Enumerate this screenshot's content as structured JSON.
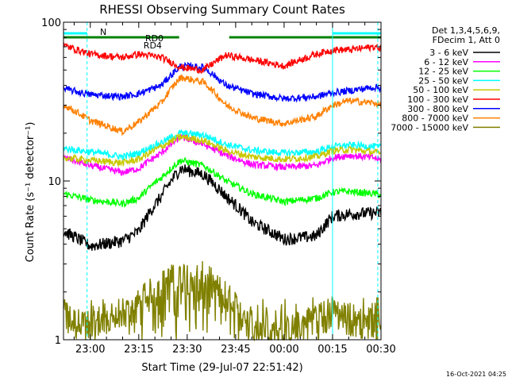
{
  "chart_data": {
    "type": "line",
    "title": "RHESSI Observing Summary Count Rates",
    "xlabel": "Start Time (29-Jul-07 22:51:42)",
    "ylabel": "Count Rate (s⁻¹ detector⁻¹)",
    "y_scale": "log",
    "ylim": [
      1,
      100
    ],
    "xlim_min_after_2300": [
      -8.3,
      31.0
    ],
    "x_ticks": [
      {
        "label": "23:00",
        "min": 0
      },
      {
        "label": "23:15",
        "min": 15
      },
      {
        "label": "23:30",
        "min": 30
      },
      {
        "label": "23:45",
        "min": 45
      },
      {
        "label": "00:00",
        "min": 60
      },
      {
        "label": "00:15",
        "min": 75
      },
      {
        "label": "00:30",
        "min": 90
      }
    ],
    "y_ticks": [
      {
        "label": "1",
        "value": 1
      },
      {
        "label": "10",
        "value": 10
      },
      {
        "label": "100",
        "value": 100
      }
    ],
    "legend_header": [
      "Det 1,3,4,5,6,9,",
      "FDecim 1, Att 0"
    ],
    "legend_position": "right",
    "annotations": {
      "night_label": "N",
      "rd4_label": "RD4",
      "rd0_label": "RD0",
      "timestamp": "16-Oct-2021 04:25"
    },
    "series": [
      {
        "name": "3 - 6 keV",
        "color": "#000000",
        "x": [
          -8,
          0,
          10,
          15,
          22,
          28,
          35,
          42,
          50,
          60,
          70,
          75,
          80,
          88,
          92
        ],
        "y": [
          4.8,
          3.9,
          4.2,
          4.8,
          8,
          12,
          11,
          8,
          5.5,
          4.3,
          4.5,
          6,
          6.2,
          6.3,
          6.4
        ]
      },
      {
        "name": "6 - 12 keV",
        "color": "#ff00ff",
        "x": [
          -8,
          0,
          10,
          15,
          22,
          28,
          35,
          42,
          50,
          60,
          70,
          75,
          80,
          88,
          92
        ],
        "y": [
          14,
          12.5,
          11.3,
          12,
          15,
          19,
          17,
          14.5,
          12.7,
          12.2,
          12.5,
          14,
          14.5,
          14,
          13
        ]
      },
      {
        "name": "12 - 25 keV",
        "color": "#00ff00",
        "x": [
          -8,
          0,
          10,
          15,
          22,
          28,
          35,
          42,
          50,
          60,
          70,
          75,
          80,
          88,
          92
        ],
        "y": [
          8.3,
          7.6,
          7.2,
          7.8,
          10.5,
          13.5,
          12.5,
          10,
          8.3,
          7.4,
          7.8,
          8.5,
          8.6,
          8.3,
          8.0
        ]
      },
      {
        "name": "25 - 50 keV",
        "color": "#00ffff",
        "x": [
          -8,
          0,
          10,
          15,
          22,
          28,
          35,
          42,
          50,
          60,
          70,
          75,
          80,
          88,
          92
        ],
        "y": [
          16,
          15.3,
          14.2,
          15,
          17.5,
          20,
          19.5,
          17,
          15.6,
          15,
          15.3,
          16.5,
          16.8,
          16.5,
          16
        ]
      },
      {
        "name": "50 - 100 keV",
        "color": "#c8c800",
        "x": [
          -8,
          0,
          10,
          15,
          22,
          28,
          35,
          42,
          50,
          60,
          70,
          75,
          80,
          88,
          92
        ],
        "y": [
          14,
          13.5,
          13,
          13.7,
          16.5,
          19,
          18,
          15.5,
          14.2,
          13.7,
          14.2,
          15.5,
          15.8,
          15.2,
          14.5
        ]
      },
      {
        "name": "100 - 300 keV",
        "color": "#ff0000",
        "x": [
          -8,
          0,
          10,
          15,
          22,
          28,
          35,
          42,
          50,
          60,
          70,
          75,
          80,
          88,
          92
        ],
        "y": [
          71,
          63,
          60,
          63,
          60,
          52,
          50,
          62,
          58,
          53,
          63,
          67,
          67,
          70,
          67
        ]
      },
      {
        "name": "300 - 800 keV",
        "color": "#0000ff",
        "x": [
          -8,
          0,
          10,
          15,
          22,
          28,
          35,
          42,
          50,
          60,
          70,
          75,
          80,
          88,
          92
        ],
        "y": [
          38,
          35,
          34,
          35.5,
          40,
          53,
          52,
          40,
          35.5,
          33,
          34,
          36,
          37,
          39,
          38
        ]
      },
      {
        "name": "800 - 7000 keV",
        "color": "#ff8000",
        "x": [
          -8,
          0,
          10,
          15,
          22,
          28,
          35,
          42,
          50,
          60,
          70,
          75,
          80,
          88,
          92
        ],
        "y": [
          30,
          24,
          20.5,
          23.5,
          31,
          45,
          42,
          30,
          25,
          23,
          25.5,
          30,
          32,
          31,
          29
        ]
      },
      {
        "name": "7000 - 15000 keV",
        "color": "#808000",
        "x": [
          -8,
          -5,
          0,
          10,
          22,
          28,
          35,
          42,
          50,
          60,
          70,
          75,
          80,
          88,
          92
        ],
        "y": [
          1.4,
          1.3,
          1.2,
          1.35,
          2.2,
          2.6,
          2.5,
          1.9,
          1.1,
          1.1,
          1.4,
          1.5,
          1.4,
          1.3,
          1.2
        ]
      }
    ]
  }
}
